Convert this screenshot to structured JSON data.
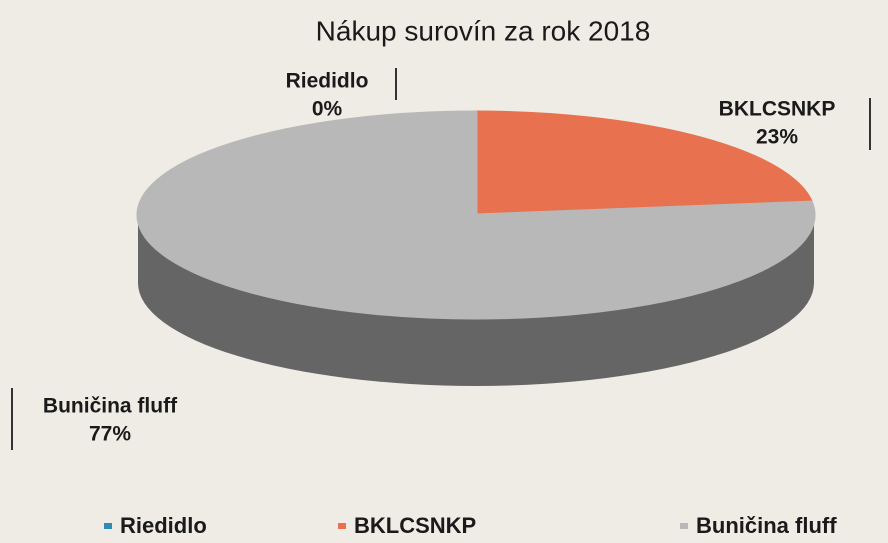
{
  "chart_data": {
    "type": "pie",
    "title": "Nákup surovín za rok 2018",
    "categories": [
      "Riedidlo",
      "BKLCSNKP",
      "Buničina fluff"
    ],
    "values": [
      0,
      23,
      77
    ],
    "value_labels": [
      "0%",
      "23%",
      "77%"
    ],
    "colors": [
      "#2e8bb5",
      "#e8714f",
      "#b8b8b8"
    ],
    "legend": "bottom"
  }
}
